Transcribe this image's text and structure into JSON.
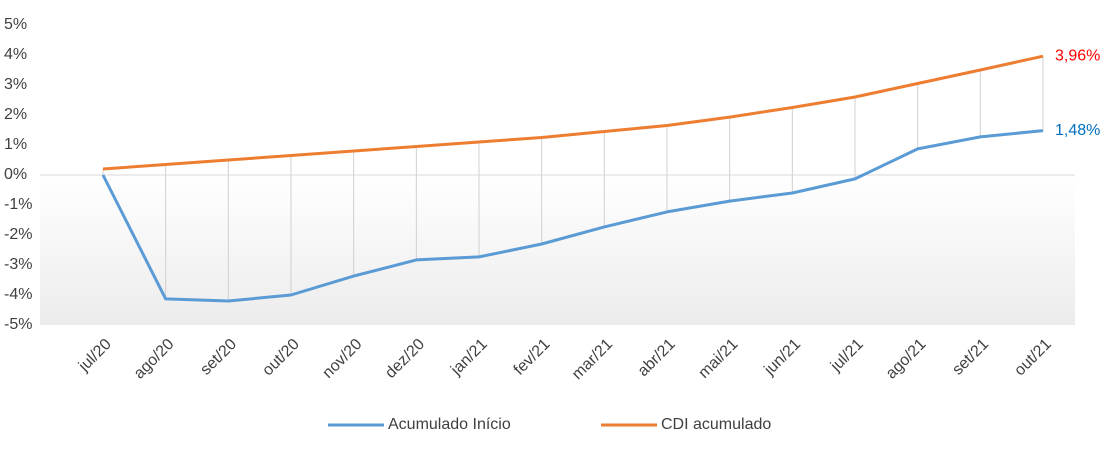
{
  "chart_data": {
    "type": "line",
    "categories": [
      "jul/20",
      "ago/20",
      "set/20",
      "out/20",
      "nov/20",
      "dez/20",
      "jan/21",
      "fev/21",
      "mar/21",
      "abr/21",
      "mai/21",
      "jun/21",
      "jul/21",
      "ago/21",
      "set/21",
      "out/21"
    ],
    "series": [
      {
        "name": "Acumulado Início",
        "color": "#5b9bd5",
        "label_color": "#0070c0",
        "values": [
          0,
          -4.13,
          -4.2,
          -4.0,
          -3.37,
          -2.83,
          -2.73,
          -2.3,
          -1.73,
          -1.23,
          -0.87,
          -0.6,
          -0.13,
          0.87,
          1.27,
          1.48
        ],
        "value_labels": [
          null,
          null,
          null,
          null,
          null,
          null,
          null,
          null,
          null,
          null,
          null,
          null,
          null,
          null,
          null,
          "1,48%"
        ]
      },
      {
        "name": "CDI acumulado",
        "color": "#ed7d31",
        "label_color": "#ff0000",
        "values": [
          0.2,
          0.35,
          0.5,
          0.65,
          0.8,
          0.95,
          1.1,
          1.25,
          1.45,
          1.65,
          1.93,
          2.25,
          2.6,
          3.05,
          3.5,
          3.96
        ],
        "value_labels": [
          null,
          null,
          null,
          null,
          null,
          null,
          null,
          null,
          null,
          null,
          null,
          null,
          null,
          null,
          null,
          "3,96%"
        ]
      }
    ],
    "ylim": [
      -5,
      5
    ],
    "yticks": [
      {
        "value": 5,
        "label": "5%"
      },
      {
        "value": 4,
        "label": "4%"
      },
      {
        "value": 3,
        "label": "3%"
      },
      {
        "value": 2,
        "label": "2%"
      },
      {
        "value": 1,
        "label": "1%"
      },
      {
        "value": 0,
        "label": "0%"
      },
      {
        "value": -1,
        "label": "-1%"
      },
      {
        "value": -2,
        "label": "-2%"
      },
      {
        "value": -3,
        "label": "-3%"
      },
      {
        "value": -4,
        "label": "-4%"
      },
      {
        "value": -5,
        "label": "-5%"
      }
    ],
    "drop_lines": true,
    "legend": "bottom"
  }
}
